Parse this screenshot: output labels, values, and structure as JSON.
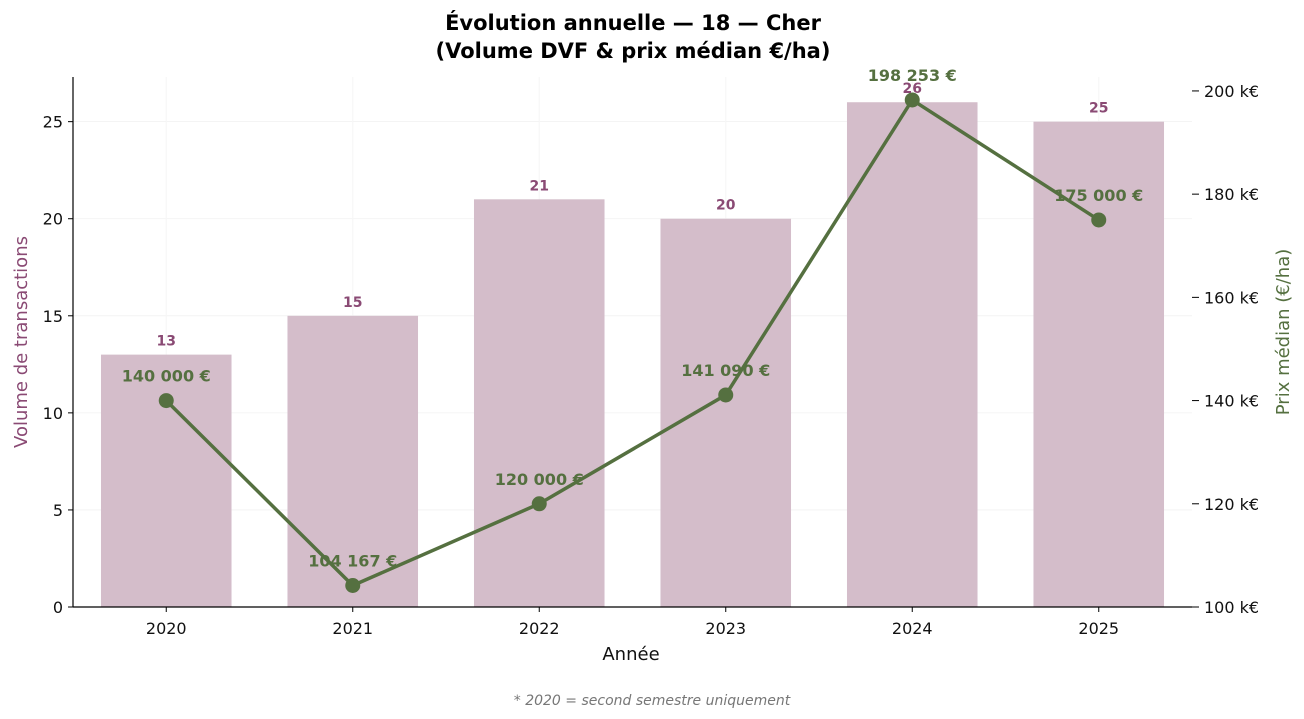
{
  "chart_data": {
    "type": "bar",
    "title_line1": "Évolution annuelle — 18 — Cher",
    "title_line2": "(Volume DVF & prix médian €/ha)",
    "xlabel": "Année",
    "ylabel_left": "Volume de transactions",
    "ylabel_right": "Prix médian (€/ha)",
    "categories": [
      "2020",
      "2021",
      "2022",
      "2023",
      "2024",
      "2025"
    ],
    "series": [
      {
        "kind": "bar",
        "axis": "left",
        "values": [
          13,
          15,
          21,
          20,
          26,
          25
        ],
        "labels": [
          "13",
          "15",
          "21",
          "20",
          "26",
          "25"
        ],
        "color": "#d4bdca",
        "label_color": "#8a4a74"
      },
      {
        "kind": "line",
        "axis": "right",
        "values": [
          140000,
          104167,
          120000,
          141090,
          198253,
          175000
        ],
        "labels": [
          "140 000 €",
          "104 167 €",
          "120 000 €",
          "141 090 €",
          "198 253 €",
          "175 000 €"
        ],
        "color": "#557040"
      }
    ],
    "ylim_left": [
      0,
      27.3
    ],
    "yticks_left": [
      0,
      5,
      10,
      15,
      20,
      25
    ],
    "ylim_right": [
      100000,
      202700
    ],
    "yticks_right": [
      100000,
      120000,
      140000,
      160000,
      180000,
      200000
    ],
    "yticklabels_right": [
      "100 k€",
      "120 k€",
      "140 k€",
      "160 k€",
      "180 k€",
      "200 k€"
    ],
    "grid": true,
    "left_label_color": "#8a4a74",
    "right_label_color": "#557040",
    "footnote": "* 2020 = second semestre uniquement"
  }
}
